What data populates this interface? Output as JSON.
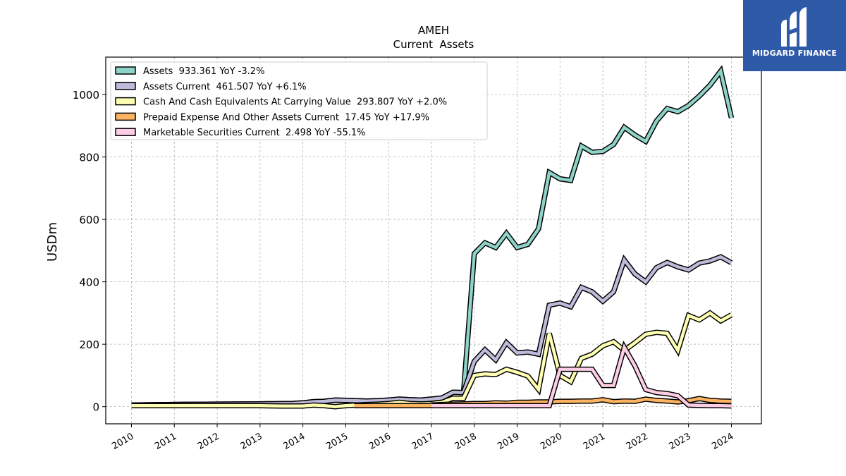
{
  "chart_data": {
    "type": "line",
    "title": "AMEH",
    "subtitle": "Current  Assets",
    "ylabel": "USDm",
    "xlabel": "",
    "ylim": [
      -55,
      1120
    ],
    "xlim": [
      2009.4,
      2024.7
    ],
    "yticks": [
      0,
      200,
      400,
      600,
      800,
      1000
    ],
    "xticks": [
      "2010",
      "2011",
      "2012",
      "2013",
      "2014",
      "2015",
      "2016",
      "2017",
      "2018",
      "2019",
      "2020",
      "2021",
      "2022",
      "2023",
      "2024"
    ],
    "grid": true,
    "legend_position": "top-left",
    "series": [
      {
        "name": "Assets  933.361 YoY -3.2%",
        "color": "#8dd3c7",
        "points": [
          [
            2010.0,
            5
          ],
          [
            2011.0,
            7
          ],
          [
            2012.0,
            8
          ],
          [
            2013.0,
            9
          ],
          [
            2013.75,
            10
          ],
          [
            2014.0,
            12
          ],
          [
            2014.25,
            16
          ],
          [
            2014.5,
            17
          ],
          [
            2014.75,
            21
          ],
          [
            2015.0,
            20
          ],
          [
            2015.25,
            19
          ],
          [
            2015.5,
            18
          ],
          [
            2015.75,
            19
          ],
          [
            2016.0,
            21
          ],
          [
            2016.25,
            24
          ],
          [
            2016.5,
            22
          ],
          [
            2016.75,
            21
          ],
          [
            2017.0,
            24
          ],
          [
            2017.25,
            28
          ],
          [
            2017.5,
            46
          ],
          [
            2017.75,
            45
          ],
          [
            2018.0,
            490
          ],
          [
            2018.25,
            525
          ],
          [
            2018.5,
            510
          ],
          [
            2018.75,
            555
          ],
          [
            2019.0,
            510
          ],
          [
            2019.25,
            520
          ],
          [
            2019.5,
            570
          ],
          [
            2019.75,
            750
          ],
          [
            2020.0,
            730
          ],
          [
            2020.25,
            725
          ],
          [
            2020.5,
            835
          ],
          [
            2020.75,
            815
          ],
          [
            2021.0,
            818
          ],
          [
            2021.25,
            840
          ],
          [
            2021.5,
            895
          ],
          [
            2021.75,
            870
          ],
          [
            2022.0,
            850
          ],
          [
            2022.25,
            915
          ],
          [
            2022.5,
            955
          ],
          [
            2022.75,
            945
          ],
          [
            2023.0,
            965
          ],
          [
            2023.25,
            995
          ],
          [
            2023.5,
            1030
          ],
          [
            2023.75,
            1075
          ],
          [
            2024.0,
            925
          ]
        ]
      },
      {
        "name": "Assets Current  461.507 YoY +6.1%",
        "color": "#bebada",
        "points": [
          [
            2010.0,
            5
          ],
          [
            2011.0,
            7
          ],
          [
            2012.0,
            8
          ],
          [
            2013.0,
            9
          ],
          [
            2013.75,
            10
          ],
          [
            2014.0,
            12
          ],
          [
            2014.25,
            16
          ],
          [
            2014.5,
            17
          ],
          [
            2014.75,
            21
          ],
          [
            2015.0,
            20
          ],
          [
            2015.25,
            19
          ],
          [
            2015.5,
            18
          ],
          [
            2015.75,
            19
          ],
          [
            2016.0,
            21
          ],
          [
            2016.25,
            24
          ],
          [
            2016.5,
            22
          ],
          [
            2016.75,
            21
          ],
          [
            2017.0,
            24
          ],
          [
            2017.25,
            28
          ],
          [
            2017.5,
            46
          ],
          [
            2017.75,
            45
          ],
          [
            2018.0,
            145
          ],
          [
            2018.25,
            182
          ],
          [
            2018.5,
            150
          ],
          [
            2018.75,
            205
          ],
          [
            2019.0,
            172
          ],
          [
            2019.25,
            175
          ],
          [
            2019.5,
            168
          ],
          [
            2019.75,
            325
          ],
          [
            2020.0,
            332
          ],
          [
            2020.25,
            320
          ],
          [
            2020.5,
            382
          ],
          [
            2020.75,
            368
          ],
          [
            2021.0,
            338
          ],
          [
            2021.25,
            368
          ],
          [
            2021.5,
            470
          ],
          [
            2021.75,
            425
          ],
          [
            2022.0,
            400
          ],
          [
            2022.25,
            445
          ],
          [
            2022.5,
            462
          ],
          [
            2022.75,
            448
          ],
          [
            2023.0,
            438
          ],
          [
            2023.25,
            460
          ],
          [
            2023.5,
            467
          ],
          [
            2023.75,
            480
          ],
          [
            2024.0,
            461
          ]
        ]
      },
      {
        "name": "Cash And Cash Equivalents At Carrying Value  293.807 YoY +2.0%",
        "color": "#ffffb3",
        "points": [
          [
            2010.0,
            3
          ],
          [
            2011.0,
            3
          ],
          [
            2012.0,
            3
          ],
          [
            2013.0,
            3
          ],
          [
            2013.5,
            2
          ],
          [
            2014.0,
            2
          ],
          [
            2014.25,
            5
          ],
          [
            2014.5,
            3
          ],
          [
            2014.75,
            0
          ],
          [
            2015.0,
            3
          ],
          [
            2015.25,
            5
          ],
          [
            2015.5,
            7
          ],
          [
            2015.75,
            8
          ],
          [
            2016.0,
            10
          ],
          [
            2016.25,
            14
          ],
          [
            2016.5,
            10
          ],
          [
            2016.75,
            9
          ],
          [
            2017.0,
            10
          ],
          [
            2017.25,
            14
          ],
          [
            2017.5,
            27
          ],
          [
            2017.75,
            27
          ],
          [
            2018.0,
            100
          ],
          [
            2018.25,
            105
          ],
          [
            2018.5,
            103
          ],
          [
            2018.75,
            120
          ],
          [
            2019.0,
            110
          ],
          [
            2019.25,
            98
          ],
          [
            2019.5,
            55
          ],
          [
            2019.75,
            235
          ],
          [
            2020.0,
            100
          ],
          [
            2020.25,
            80
          ],
          [
            2020.5,
            155
          ],
          [
            2020.75,
            168
          ],
          [
            2021.0,
            195
          ],
          [
            2021.25,
            208
          ],
          [
            2021.5,
            180
          ],
          [
            2021.75,
            205
          ],
          [
            2022.0,
            232
          ],
          [
            2022.25,
            238
          ],
          [
            2022.5,
            235
          ],
          [
            2022.75,
            180
          ],
          [
            2023.0,
            292
          ],
          [
            2023.25,
            278
          ],
          [
            2023.5,
            300
          ],
          [
            2023.75,
            275
          ],
          [
            2024.0,
            294
          ]
        ]
      },
      {
        "name": "Prepaid Expense And Other Assets Current  17.45 YoY +17.9%",
        "color": "#fdb462",
        "points": [
          [
            2015.2,
            3
          ],
          [
            2016.25,
            3
          ],
          [
            2016.95,
            3
          ],
          [
            2017.0,
            5
          ],
          [
            2017.25,
            7
          ],
          [
            2017.5,
            8
          ],
          [
            2017.75,
            9
          ],
          [
            2018.0,
            10
          ],
          [
            2018.25,
            10
          ],
          [
            2018.5,
            12
          ],
          [
            2018.75,
            11
          ],
          [
            2019.0,
            14
          ],
          [
            2019.25,
            14
          ],
          [
            2019.5,
            15
          ],
          [
            2019.75,
            15
          ],
          [
            2020.0,
            17
          ],
          [
            2020.25,
            17
          ],
          [
            2020.5,
            18
          ],
          [
            2020.75,
            18
          ],
          [
            2021.0,
            22
          ],
          [
            2021.25,
            16
          ],
          [
            2021.5,
            18
          ],
          [
            2021.75,
            17
          ],
          [
            2022.0,
            24
          ],
          [
            2022.25,
            20
          ],
          [
            2022.5,
            18
          ],
          [
            2022.75,
            15
          ],
          [
            2023.0,
            19
          ],
          [
            2023.25,
            26
          ],
          [
            2023.5,
            20
          ],
          [
            2023.75,
            18
          ],
          [
            2024.0,
            17
          ]
        ]
      },
      {
        "name": "Marketable Securities Current  2.498 YoY -55.1%",
        "color": "#fccde5",
        "points": [
          [
            2017.0,
            3
          ],
          [
            2019.5,
            3
          ],
          [
            2019.75,
            3
          ],
          [
            2020.0,
            120
          ],
          [
            2020.25,
            120
          ],
          [
            2020.5,
            120
          ],
          [
            2020.75,
            120
          ],
          [
            2021.0,
            68
          ],
          [
            2021.25,
            68
          ],
          [
            2021.5,
            190
          ],
          [
            2021.75,
            130
          ],
          [
            2022.0,
            55
          ],
          [
            2022.25,
            45
          ],
          [
            2022.5,
            42
          ],
          [
            2022.75,
            35
          ],
          [
            2023.0,
            5
          ],
          [
            2023.25,
            4
          ],
          [
            2023.5,
            3
          ],
          [
            2023.75,
            3
          ],
          [
            2024.0,
            2.5
          ]
        ]
      }
    ]
  },
  "logo": {
    "text": "MIDGARD FINANCE"
  }
}
